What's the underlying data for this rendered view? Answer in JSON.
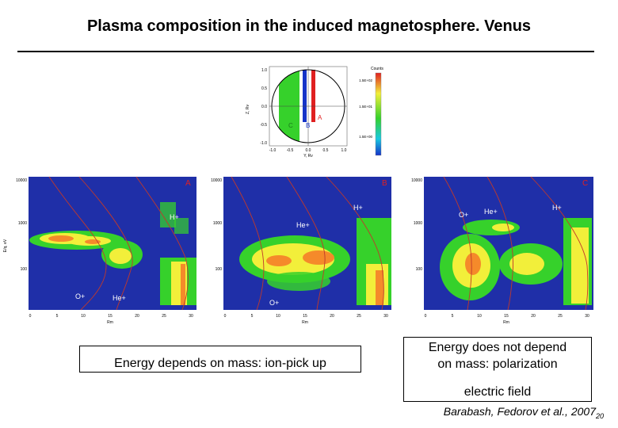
{
  "slide": {
    "title": "Plasma composition in the induced magnetosphere. Venus",
    "citation": "Barabash, Fedorov  et al., 2007",
    "page_number": "20"
  },
  "top_plot": {
    "xlabel": "Y, Rv",
    "ylabel": "Z, Rv",
    "x_ticks": [
      "-1.0",
      "-0.5",
      "0.0",
      "0.5",
      "1.0"
    ],
    "y_ticks": [
      "1.0",
      "0.5",
      "0.0",
      "-0.5",
      "-1.0"
    ],
    "region_labels": [
      "A",
      "B",
      "C"
    ],
    "colorbar_title": "Counts",
    "colorbar_ticks": [
      "1.5E+02",
      "1.5E+01",
      "1.5E+00"
    ]
  },
  "panels": [
    {
      "letter": "A",
      "ion_labels": [
        "H+",
        "O+",
        "He+"
      ],
      "y_ticks": [
        "10000",
        "1000",
        "100"
      ],
      "x_ticks": [
        "0",
        "5",
        "10",
        "15",
        "20",
        "25",
        "30"
      ],
      "xlabel": "Rm",
      "ylabel": "E/q, eV"
    },
    {
      "letter": "B",
      "ion_labels": [
        "H+",
        "He+",
        "O+"
      ],
      "y_ticks": [
        "10000",
        "1000",
        "100"
      ],
      "x_ticks": [
        "0",
        "5",
        "10",
        "15",
        "20",
        "25",
        "30"
      ],
      "xlabel": "Rm"
    },
    {
      "letter": "C",
      "ion_labels": [
        "O+",
        "He+",
        "H+"
      ],
      "y_ticks": [
        "10000",
        "1000",
        "100"
      ],
      "x_ticks": [
        "0",
        "5",
        "10",
        "15",
        "20",
        "25",
        "30"
      ],
      "xlabel": "Rm"
    }
  ],
  "boxes": {
    "left": "Energy depends on mass: ion-pick up",
    "right_line1": "Energy does not depend",
    "right_line2": "on mass: polarization",
    "right_line3": "electric field"
  },
  "colors": {
    "background_blue": "#1f2fa8",
    "green": "#36d12b",
    "yellow": "#f2ef3a",
    "red": "#e02020",
    "blue": "#1533c8"
  }
}
